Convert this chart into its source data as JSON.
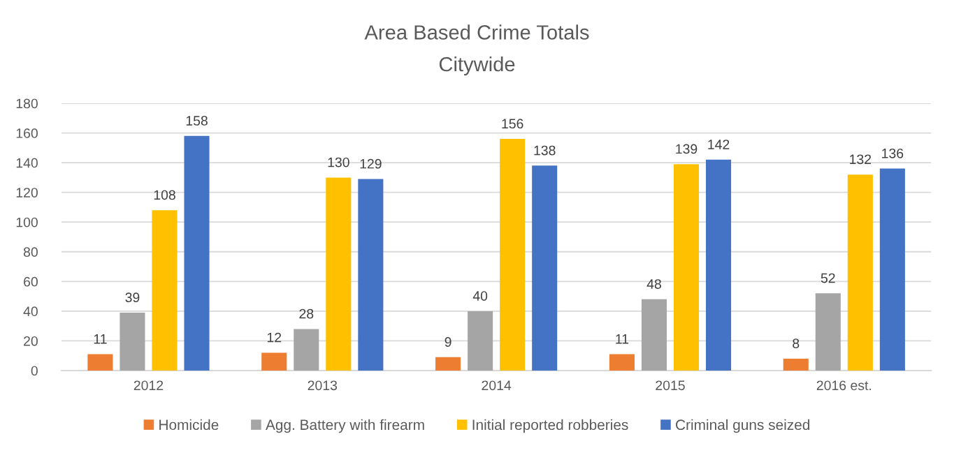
{
  "chart_data": {
    "type": "bar",
    "title": "Area Based Crime Totals",
    "subtitle": "Citywide",
    "categories": [
      "2012",
      "2013",
      "2014",
      "2015",
      "2016 est."
    ],
    "series": [
      {
        "name": "Homicide",
        "color": "#ed7d31",
        "values": [
          11,
          12,
          9,
          11,
          8
        ]
      },
      {
        "name": "Agg. Battery with firearm",
        "color": "#a5a5a5",
        "values": [
          39,
          28,
          40,
          48,
          52
        ]
      },
      {
        "name": "Initial reported robberies",
        "color": "#ffc000",
        "values": [
          108,
          130,
          156,
          139,
          132
        ]
      },
      {
        "name": "Criminal guns seized",
        "color": "#4472c4",
        "values": [
          158,
          129,
          138,
          142,
          136
        ]
      }
    ],
    "ylim": [
      0,
      180
    ],
    "yticks": [
      0,
      20,
      40,
      60,
      80,
      100,
      120,
      140,
      160,
      180
    ],
    "grid": "y",
    "legend": "bottom",
    "data_labels": true
  }
}
